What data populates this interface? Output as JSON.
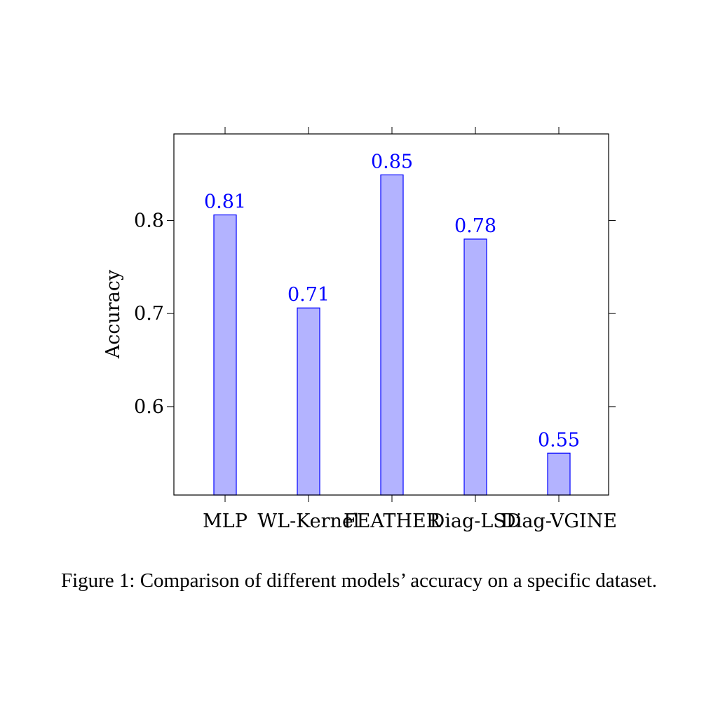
{
  "caption": "Figure 1: Comparison of different models’ accuracy on a specific dataset.",
  "colors": {
    "bar_fill": "#b3b3ff",
    "bar_stroke": "#0000ff",
    "label": "#0000ff",
    "axis": "#000000"
  },
  "chart_data": {
    "type": "bar",
    "categories": [
      "MLP",
      "WL-Kernel",
      "FEATHER",
      "Diag-LSD",
      "Diag-VGINE"
    ],
    "values": [
      0.806,
      0.706,
      0.849,
      0.78,
      0.55
    ],
    "data_labels": [
      "0.81",
      "0.71",
      "0.85",
      "0.78",
      "0.55"
    ],
    "ylabel": "Accuracy",
    "ylim": [
      0.505,
      0.893
    ],
    "yticks": [
      0.6,
      0.7,
      0.8
    ],
    "ytick_labels": [
      "0.6",
      "0.7",
      "0.8"
    ],
    "grid": false,
    "legend": "none"
  }
}
